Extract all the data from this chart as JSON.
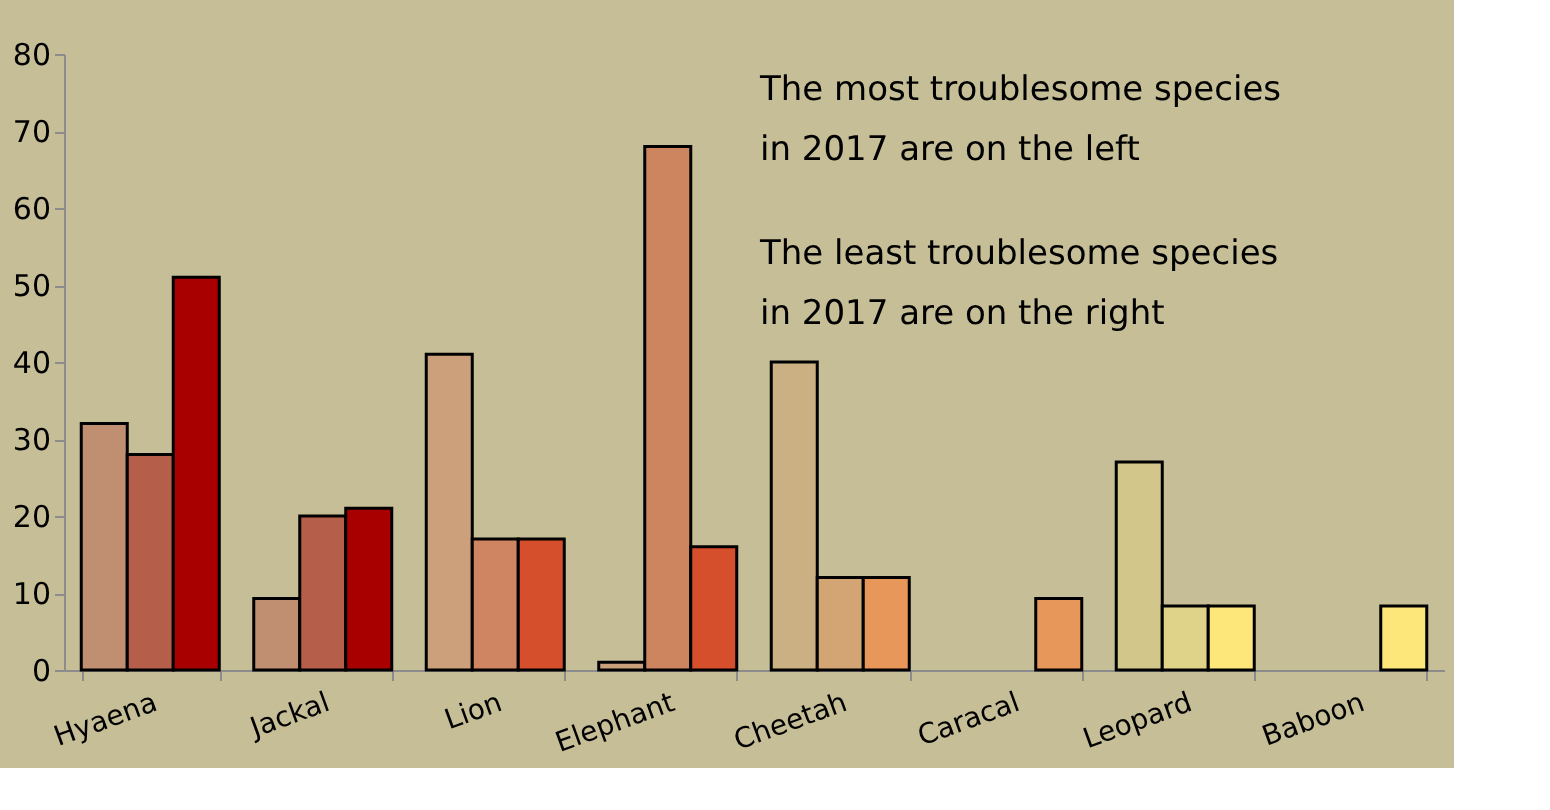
{
  "chart_data": {
    "type": "bar",
    "categories": [
      "Hyaena",
      "Jackal",
      "Lion",
      "Elephant",
      "Cheetah",
      "Caracal",
      "Leopard",
      "Baboon"
    ],
    "series": [
      {
        "colors": [
          "#c08e70",
          "#c08e70",
          "#cba07a",
          "#c9a27c",
          "#cbb083",
          null,
          "#d2c68a",
          null
        ],
        "values": [
          32,
          9.3,
          41,
          1,
          40,
          null,
          27,
          null
        ]
      },
      {
        "colors": [
          "#b55e4a",
          "#b55e4a",
          "#cf8562",
          "#cd8560",
          "#d4a574",
          null,
          "#dfd38a",
          null
        ],
        "values": [
          28,
          20,
          17,
          68,
          12,
          null,
          8.3,
          null
        ]
      },
      {
        "colors": [
          "#a80000",
          "#a80000",
          "#d64f2c",
          "#d64f2c",
          "#e8975a",
          "#e8975a",
          "#fde67a",
          "#fde67a"
        ],
        "values": [
          51,
          21,
          17,
          16,
          12,
          9.3,
          8.3,
          8.3
        ]
      }
    ],
    "ylim": [
      0,
      80
    ],
    "yticks": [
      0,
      10,
      20,
      30,
      40,
      50,
      60,
      70,
      80
    ],
    "grid": false,
    "annotations": [
      "The most troublesome species\n in 2017 are on the left",
      "The least troublesome species\n in 2017 are on the right"
    ]
  }
}
